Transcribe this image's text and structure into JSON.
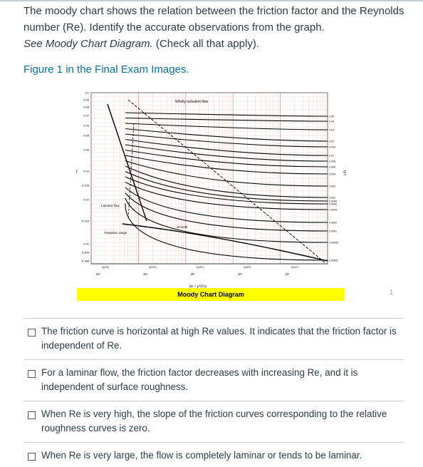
{
  "question": {
    "line1": "The moody chart shows the relation between the friction factor and the Reynolds number (Re). Identify the accurate observations from the graph.",
    "line2": "See Moody Chart Diagram.",
    "line2_suffix": " (Check all that apply).",
    "figure_link": "Figure 1 in the Final Exam Images."
  },
  "chart": {
    "caption": "Moody Chart Diagram",
    "top_label": "Wholly turbulent flow",
    "laminar_label": "Laminar flow",
    "transition_label": "Transition range",
    "smooth_label": "Smooth",
    "re_formula": "Re = ρVD/μ",
    "f_label": "f",
    "eps_label": "ε/D",
    "left_ticks": [
      "0.1",
      "0.09",
      "0.08",
      "0.07",
      "0.06",
      "0.05",
      "0.04",
      "0.03",
      "0.025",
      "0.02",
      "0.015",
      "0.01",
      "0.009",
      "0.008"
    ],
    "right_ticks": [
      "0.05",
      "0.04",
      "0.03",
      "0.02",
      "0.015",
      "0.01",
      "0.008",
      "0.006",
      "0.004",
      "0.002",
      "0.001",
      "0.0008",
      "0.0006",
      "0.0004",
      "0.0002",
      "0.0001",
      "0.00005",
      "0.00001"
    ],
    "decade_labels": [
      "10³",
      "10⁴",
      "10⁵",
      "10⁶",
      "10⁷"
    ],
    "sub_labels": [
      "2(10³)",
      "2(10⁴)",
      "2(10⁵)",
      "2(10⁶)",
      "2(10⁷)"
    ]
  },
  "page_marker": "1",
  "answers": [
    {
      "text": "The friction curve is horizontal at high Re values. It indicates that the friction factor is independent of Re.",
      "checked": false
    },
    {
      "text": "For a laminar flow, the friction factor decreases with increasing Re, and it is independent of surface roughness.",
      "checked": false
    },
    {
      "text": "When Re is very high, the slope of the friction curves corresponding to the relative roughness curves is zero.",
      "checked": false
    },
    {
      "text": "When Re is very large, the flow is completely laminar or tends to be laminar.",
      "checked": false
    }
  ]
}
